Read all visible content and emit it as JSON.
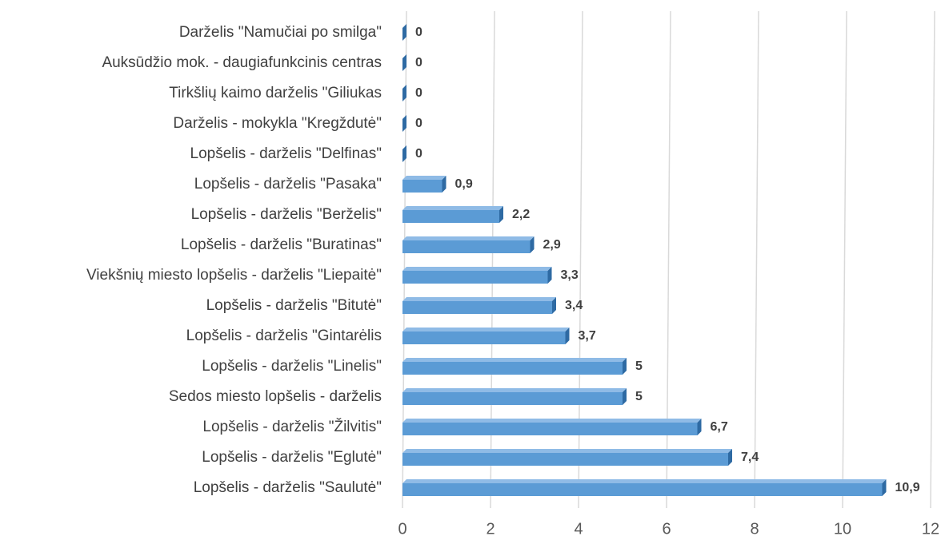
{
  "chart_data": {
    "type": "bar",
    "orientation": "horizontal",
    "categories": [
      "Darželis \"Namučiai po smilga\"",
      "Auksūdžio mok. -  daugiafunkcinis centras",
      "Tirkšlių kaimo darželis \"Giliukas",
      "Darželis - mokykla \"Kregždutė\"",
      "Lopšelis - darželis \"Delfinas\"",
      "Lopšelis - darželis \"Pasaka\"",
      "Lopšelis - darželis \"Berželis\"",
      "Lopšelis - darželis \"Buratinas\"",
      "Viekšnių miesto lopšelis - darželis \"Liepaitė\"",
      "Lopšelis - darželis \"Bitutė\"",
      "Lopšelis - darželis \"Gintarėlis",
      "Lopšelis - darželis \"Linelis\"",
      "Sedos miesto lopšelis - darželis",
      "Lopšelis - darželis \"Žilvitis\"",
      "Lopšelis - darželis \"Eglutė\"",
      "Lopšelis - darželis \"Saulutė\""
    ],
    "values": [
      0,
      0,
      0,
      0,
      0,
      0.9,
      2.2,
      2.9,
      3.3,
      3.4,
      3.7,
      5,
      5,
      6.7,
      7.4,
      10.9
    ],
    "value_labels": [
      "0",
      "0",
      "0",
      "0",
      "0",
      "0,9",
      "2,2",
      "2,9",
      "3,3",
      "3,4",
      "3,7",
      "5",
      "5",
      "6,7",
      "7,4",
      "10,9"
    ],
    "color": "#5b9bd5",
    "xlim": [
      0,
      12
    ],
    "xticks": [
      0,
      2,
      4,
      6,
      8,
      10,
      12
    ],
    "grid": true
  }
}
